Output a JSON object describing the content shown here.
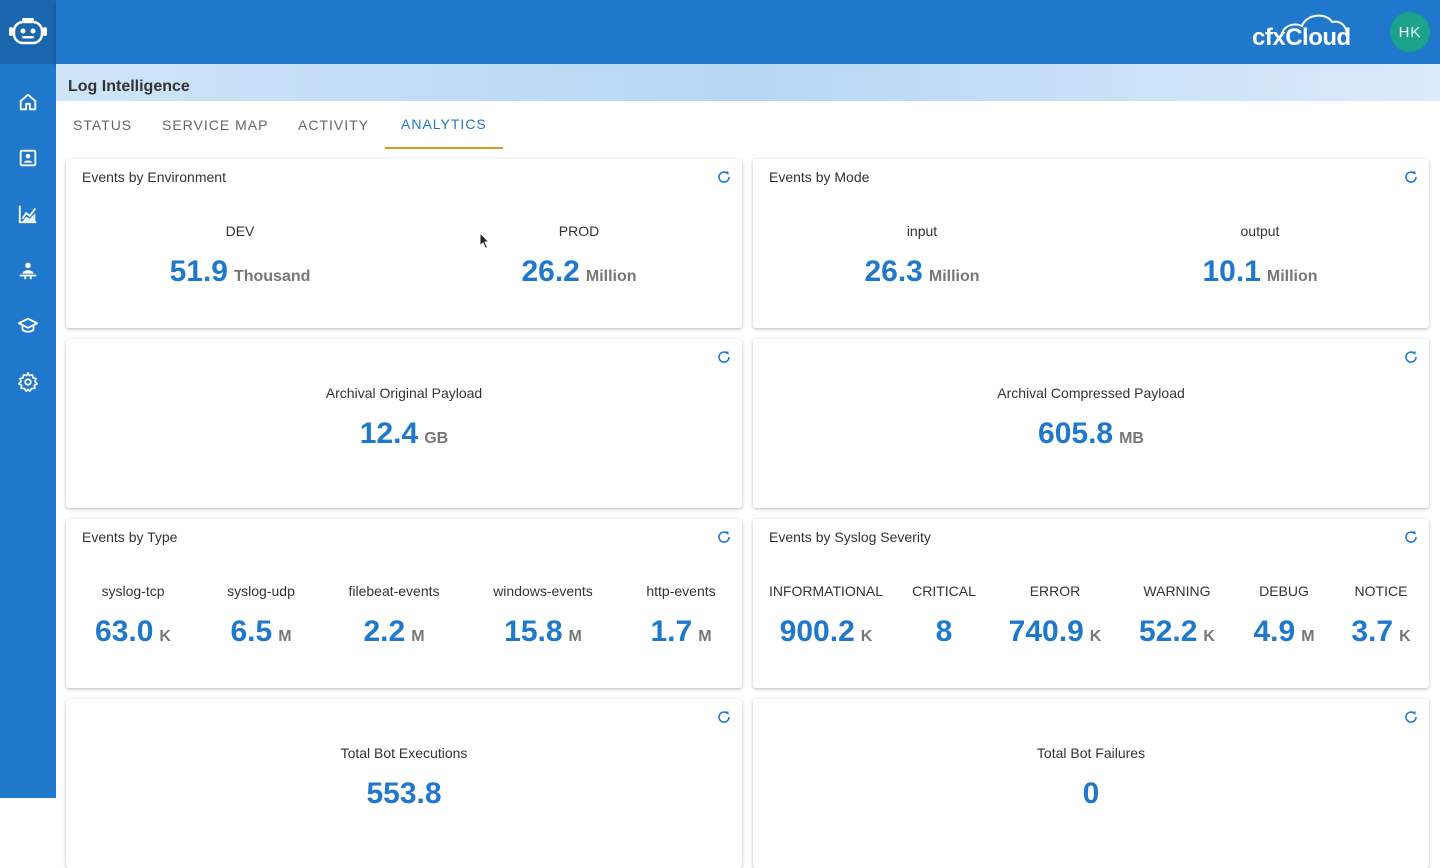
{
  "app": {
    "brand": "cfxCloud",
    "avatar_initials": "HK",
    "page_title": "Log Intelligence"
  },
  "sidebar": {
    "items": [
      {
        "icon": "home-icon"
      },
      {
        "icon": "contact-card-icon"
      },
      {
        "icon": "analytics-chart-icon"
      },
      {
        "icon": "person-desk-icon"
      },
      {
        "icon": "graduation-cap-icon"
      },
      {
        "icon": "gear-icon"
      }
    ]
  },
  "tabs": [
    {
      "label": "STATUS"
    },
    {
      "label": "SERVICE MAP"
    },
    {
      "label": "ACTIVITY"
    },
    {
      "label": "ANALYTICS",
      "active": true
    }
  ],
  "cards": {
    "env": {
      "title": "Events by Environment",
      "metrics": [
        {
          "label": "DEV",
          "value": "51.9",
          "unit": "Thousand"
        },
        {
          "label": "PROD",
          "value": "26.2",
          "unit": "Million"
        }
      ]
    },
    "mode": {
      "title": "Events by Mode",
      "metrics": [
        {
          "label": "input",
          "value": "26.3",
          "unit": "Million"
        },
        {
          "label": "output",
          "value": "10.1",
          "unit": "Million"
        }
      ]
    },
    "archival_original": {
      "label": "Archival Original Payload",
      "value": "12.4",
      "unit": "GB"
    },
    "archival_compressed": {
      "label": "Archival Compressed Payload",
      "value": "605.8",
      "unit": "MB"
    },
    "type": {
      "title": "Events by Type",
      "metrics": [
        {
          "label": "syslog-tcp",
          "value": "63.0",
          "unit": "K"
        },
        {
          "label": "syslog-udp",
          "value": "6.5",
          "unit": "M"
        },
        {
          "label": "filebeat-events",
          "value": "2.2",
          "unit": "M"
        },
        {
          "label": "windows-events",
          "value": "15.8",
          "unit": "M"
        },
        {
          "label": "http-events",
          "value": "1.7",
          "unit": "M"
        }
      ]
    },
    "severity": {
      "title": "Events by Syslog Severity",
      "metrics": [
        {
          "label": "INFORMATIONAL",
          "value": "900.2",
          "unit": "K"
        },
        {
          "label": "CRITICAL",
          "value": "8",
          "unit": ""
        },
        {
          "label": "ERROR",
          "value": "740.9",
          "unit": "K"
        },
        {
          "label": "WARNING",
          "value": "52.2",
          "unit": "K"
        },
        {
          "label": "DEBUG",
          "value": "4.9",
          "unit": "M"
        },
        {
          "label": "NOTICE",
          "value": "3.7",
          "unit": "K"
        }
      ]
    },
    "bot_exec": {
      "label": "Total Bot Executions",
      "value": "553.8",
      "unit": ""
    },
    "bot_fail": {
      "label": "Total Bot Failures",
      "value": "0",
      "unit": ""
    }
  },
  "colors": {
    "primary": "#1f78cc",
    "tab_indicator": "#d49a2a",
    "avatar": "#1aa38a"
  }
}
